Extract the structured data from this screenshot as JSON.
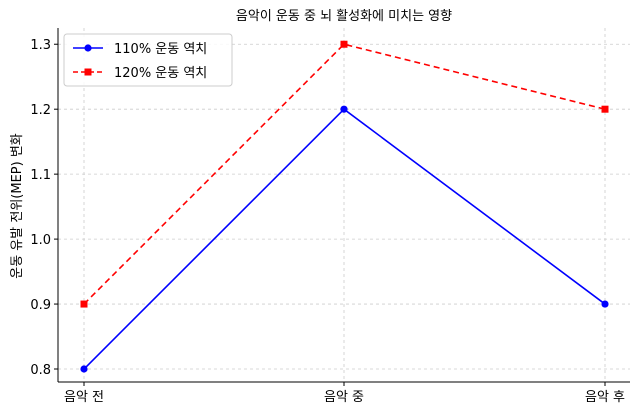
{
  "chart_data": {
    "type": "line",
    "title": "음악이 운동 중 뇌 활성화에 미치는 영향",
    "xlabel": "",
    "ylabel": "운동 유발 전위(MEP) 변화",
    "categories": [
      "음악 전",
      "음악 중",
      "음악 후"
    ],
    "ylim": [
      0.78,
      1.325
    ],
    "yticks": [
      "0.8",
      "0.9",
      "1.0",
      "1.1",
      "1.2",
      "1.3"
    ],
    "ytick_values": [
      0.8,
      0.9,
      1.0,
      1.1,
      1.2,
      1.3
    ],
    "grid": true,
    "legend_position": "top-left",
    "series": [
      {
        "name": "110% 운동 역치",
        "values": [
          0.8,
          1.2,
          0.9
        ],
        "color": "#0000ff",
        "line_style": "solid",
        "marker": "circle"
      },
      {
        "name": "120% 운동 역치",
        "values": [
          0.9,
          1.3,
          1.2
        ],
        "color": "#ff0000",
        "line_style": "dashed",
        "marker": "square"
      }
    ]
  }
}
